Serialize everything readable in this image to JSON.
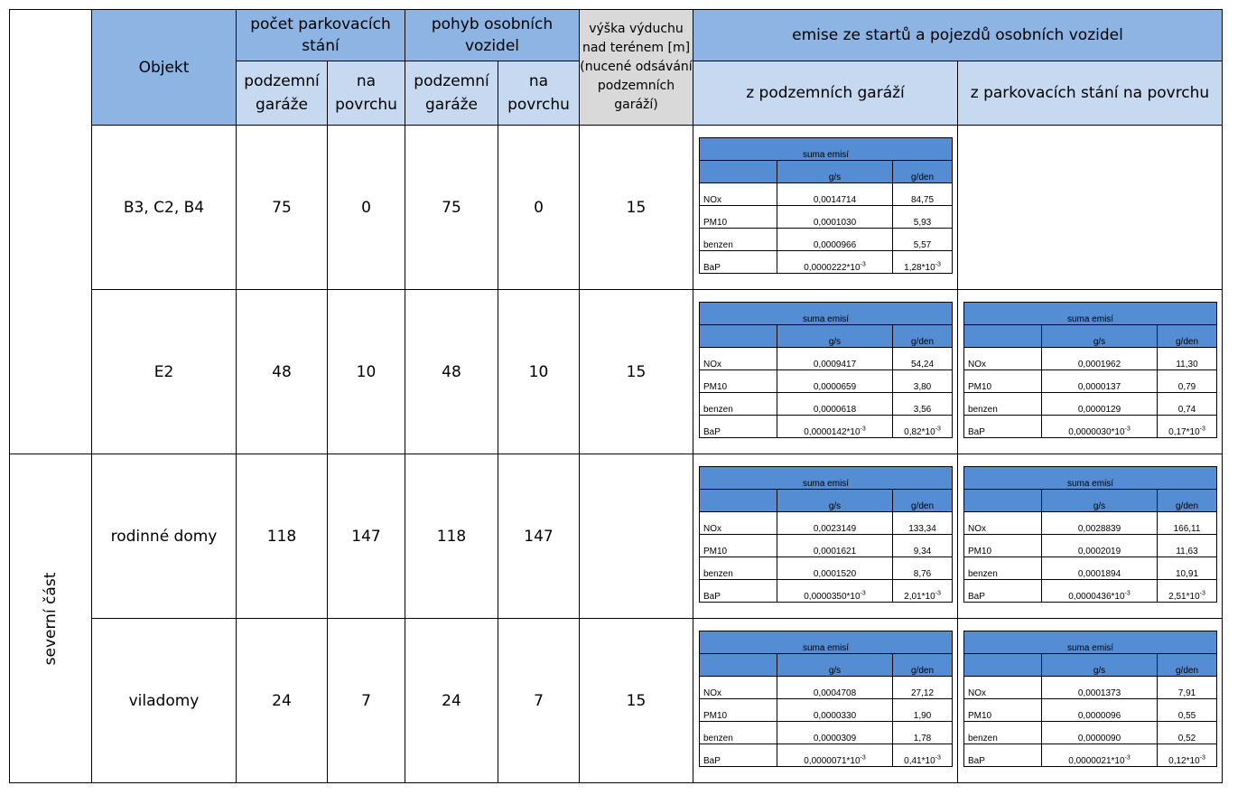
{
  "header": {
    "objekt": "Objekt",
    "pocet": "počet parkovacích stání",
    "pohyb": "pohyb osobních vozidel",
    "vyska": "výška výduchu nad terénem [m] (nucené odsávání podzemních garáží)",
    "emise": "emise ze startů a pojezdů osobních vozidel",
    "podzemni": "podzemní garáže",
    "povrch": "na povrchu",
    "z_podzemnich": "z podzemních garáží",
    "z_povrch": "z parkovacích stání na povrchu"
  },
  "side_label": "severní část",
  "inner_labels": {
    "suma": "suma emisí",
    "gs": "g/s",
    "gden": "g/den",
    "exp": "-3",
    "mult": "*10"
  },
  "rows": [
    {
      "objekt": "B3, C2, B4",
      "stani_podzemni": "75",
      "stani_povrch": "0",
      "pohyb_podzemni": "75",
      "pohyb_povrch": "0",
      "vyska": "15",
      "podzemni": [
        {
          "name": "NOx",
          "gs": "0,0014714",
          "gden": "84,75"
        },
        {
          "name": "PM10",
          "gs": "0,0001030",
          "gden": "5,93"
        },
        {
          "name": "benzen",
          "gs": "0,0000966",
          "gden": "5,57"
        },
        {
          "name": "BaP",
          "gs": "0,0000222",
          "gden": "1,28"
        }
      ],
      "povrch": null
    },
    {
      "objekt": "E2",
      "stani_podzemni": "48",
      "stani_povrch": "10",
      "pohyb_podzemni": "48",
      "pohyb_povrch": "10",
      "vyska": "15",
      "podzemni": [
        {
          "name": "NOx",
          "gs": "0,0009417",
          "gden": "54,24"
        },
        {
          "name": "PM10",
          "gs": "0,0000659",
          "gden": "3,80"
        },
        {
          "name": "benzen",
          "gs": "0,0000618",
          "gden": "3,56"
        },
        {
          "name": "BaP",
          "gs": "0,0000142",
          "gden": "0,82"
        }
      ],
      "povrch": [
        {
          "name": "NOx",
          "gs": "0,0001962",
          "gden": "11,30"
        },
        {
          "name": "PM10",
          "gs": "0,0000137",
          "gden": "0,79"
        },
        {
          "name": "benzen",
          "gs": "0,0000129",
          "gden": "0,74"
        },
        {
          "name": "BaP",
          "gs": "0,0000030",
          "gden": "0,17"
        }
      ]
    },
    {
      "objekt": "rodinné domy",
      "stani_podzemni": "118",
      "stani_povrch": "147",
      "pohyb_podzemni": "118",
      "pohyb_povrch": "147",
      "vyska": "",
      "podzemni": [
        {
          "name": "NOx",
          "gs": "0,0023149",
          "gden": "133,34"
        },
        {
          "name": "PM10",
          "gs": "0,0001621",
          "gden": "9,34"
        },
        {
          "name": "benzen",
          "gs": "0,0001520",
          "gden": "8,76"
        },
        {
          "name": "BaP",
          "gs": "0,0000350",
          "gden": "2,01"
        }
      ],
      "povrch": [
        {
          "name": "NOx",
          "gs": "0,0028839",
          "gden": "166,11"
        },
        {
          "name": "PM10",
          "gs": "0,0002019",
          "gden": "11,63"
        },
        {
          "name": "benzen",
          "gs": "0,0001894",
          "gden": "10,91"
        },
        {
          "name": "BaP",
          "gs": "0,0000436",
          "gden": "2,51"
        }
      ]
    },
    {
      "objekt": "viladomy",
      "stani_podzemni": "24",
      "stani_povrch": "7",
      "pohyb_podzemni": "24",
      "pohyb_povrch": "7",
      "vyska": "15",
      "podzemni": [
        {
          "name": "NOx",
          "gs": "0,0004708",
          "gden": "27,12"
        },
        {
          "name": "PM10",
          "gs": "0,0000330",
          "gden": "1,90"
        },
        {
          "name": "benzen",
          "gs": "0,0000309",
          "gden": "1,78"
        },
        {
          "name": "BaP",
          "gs": "0,0000071",
          "gden": "0,41"
        }
      ],
      "povrch": [
        {
          "name": "NOx",
          "gs": "0,0001373",
          "gden": "7,91"
        },
        {
          "name": "PM10",
          "gs": "0,0000096",
          "gden": "0,55"
        },
        {
          "name": "benzen",
          "gs": "0,0000090",
          "gden": "0,52"
        },
        {
          "name": "BaP",
          "gs": "0,0000021",
          "gden": "0,12"
        }
      ]
    }
  ]
}
